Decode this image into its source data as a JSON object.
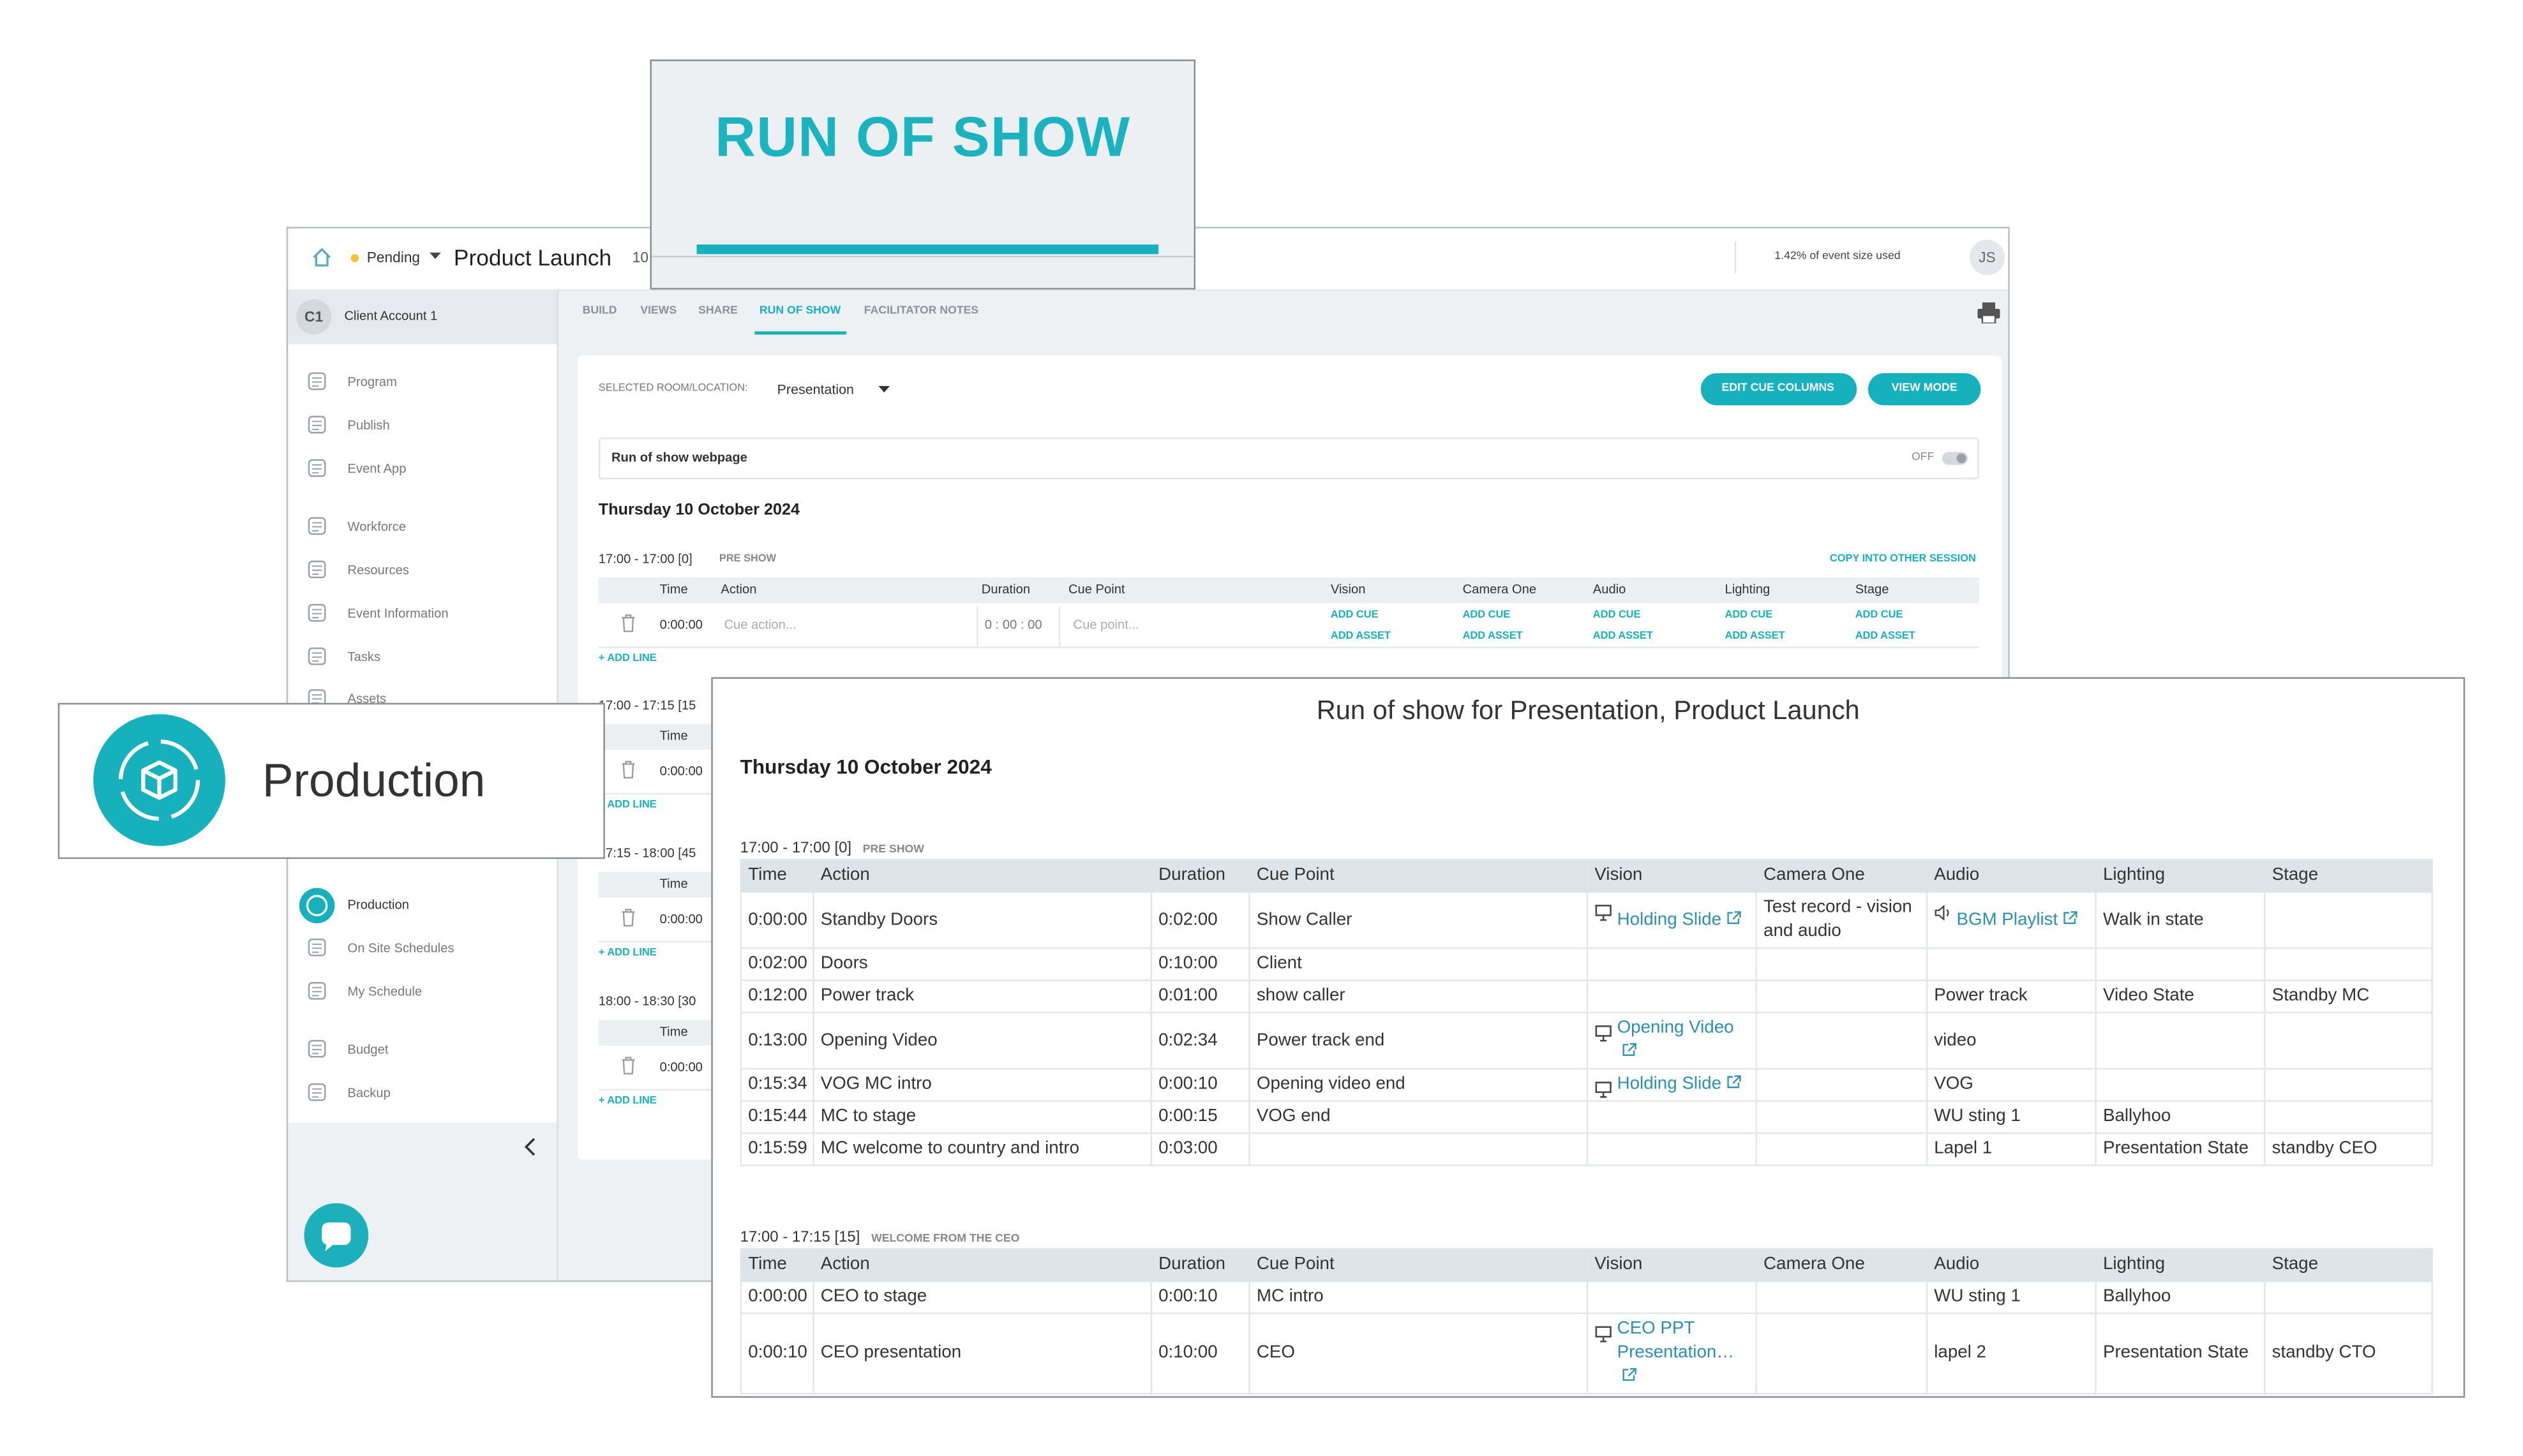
{
  "banner": {
    "title": "RUN OF SHOW"
  },
  "badge": {
    "label": "Production"
  },
  "app": {
    "status": "Pending",
    "event_name": "Product Launch",
    "event_code": "10",
    "usage": "1.42% of event size used",
    "user_initials": "JS",
    "account": {
      "initials": "C1",
      "name": "Client Account 1"
    },
    "nav": [
      "Program",
      "Publish",
      "Event App",
      "Workforce",
      "Resources",
      "Event Information",
      "Tasks",
      "Assets",
      "Production",
      "On Site Schedules",
      "My Schedule",
      "Budget",
      "Backup"
    ],
    "tabs": [
      "BUILD",
      "VIEWS",
      "SHARE",
      "RUN OF SHOW",
      "FACILITATOR NOTES"
    ],
    "room_label": "SELECTED ROOM/LOCATION:",
    "room": "Presentation",
    "buttons": [
      "EDIT CUE COLUMNS",
      "VIEW MODE"
    ],
    "webpage_label": "Run of show webpage",
    "toggle": "OFF",
    "date": "Thursday 10 October 2024",
    "copy_link": "COPY INTO OTHER SESSION",
    "sessions": [
      {
        "time": "17:00 - 17:00 [0]",
        "name": "PRE SHOW"
      },
      {
        "time": "17:00 - 17:15 [15"
      },
      {
        "time": "17:15 - 18:00 [45"
      },
      {
        "time": "18:00 - 18:30 [30"
      }
    ],
    "columns": [
      "Time",
      "Action",
      "Duration",
      "Cue Point",
      "Vision",
      "Camera One",
      "Audio",
      "Lighting",
      "Stage"
    ],
    "row": {
      "time": "0:00:00",
      "action_placeholder": "Cue action...",
      "duration": "0 : 00 : 00",
      "cue_placeholder": "Cue point..."
    },
    "add_cue": "ADD CUE",
    "add_asset": "ADD ASSET",
    "add_line": "+ ADD LINE"
  },
  "report": {
    "title": "Run of show for Presentation, Product Launch",
    "date": "Thursday 10 October 2024",
    "columns": [
      "Time",
      "Action",
      "Duration",
      "Cue Point",
      "Vision",
      "Camera One",
      "Audio",
      "Lighting",
      "Stage"
    ],
    "sessions": [
      {
        "time": "17:00 - 17:00 [0]",
        "name": "PRE SHOW",
        "rows": [
          [
            "0:00:00",
            "Standby Doors",
            "0:02:00",
            "Show Caller",
            {
              "asset": "Holding Slide"
            },
            "Test record - vision and audio",
            {
              "asset": "BGM Playlist"
            },
            "Walk in state",
            null
          ],
          [
            "0:02:00",
            "Doors",
            "0:10:00",
            "Client",
            null,
            null,
            null,
            null,
            null
          ],
          [
            "0:12:00",
            "Power track",
            "0:01:00",
            "show caller",
            null,
            null,
            "Power track",
            "Video State",
            "Standby MC"
          ],
          [
            "0:13:00",
            "Opening Video",
            "0:02:34",
            "Power track end",
            {
              "asset": "Opening Video"
            },
            null,
            "video",
            null,
            null
          ],
          [
            "0:15:34",
            "VOG MC intro",
            "0:00:10",
            "Opening video end",
            {
              "asset": "Holding Slide"
            },
            null,
            "VOG",
            null,
            null
          ],
          [
            "0:15:44",
            "MC to stage",
            "0:00:15",
            "VOG end",
            null,
            null,
            "WU sting 1",
            "Ballyhoo",
            null
          ],
          [
            "0:15:59",
            "MC welcome to country and intro",
            "0:03:00",
            null,
            null,
            null,
            "Lapel 1",
            "Presentation State",
            "standby CEO"
          ]
        ]
      },
      {
        "time": "17:00 - 17:15 [15]",
        "name": "WELCOME FROM THE CEO",
        "rows": [
          [
            "0:00:00",
            "CEO to stage",
            "0:00:10",
            "MC intro",
            null,
            null,
            "WU sting 1",
            "Ballyhoo",
            null
          ],
          [
            "0:00:10",
            "CEO presentation",
            "0:10:00",
            "CEO",
            {
              "asset": "CEO PPT Presentation…"
            },
            null,
            "lapel 2",
            "Presentation State",
            "standby CTO"
          ]
        ]
      }
    ]
  }
}
